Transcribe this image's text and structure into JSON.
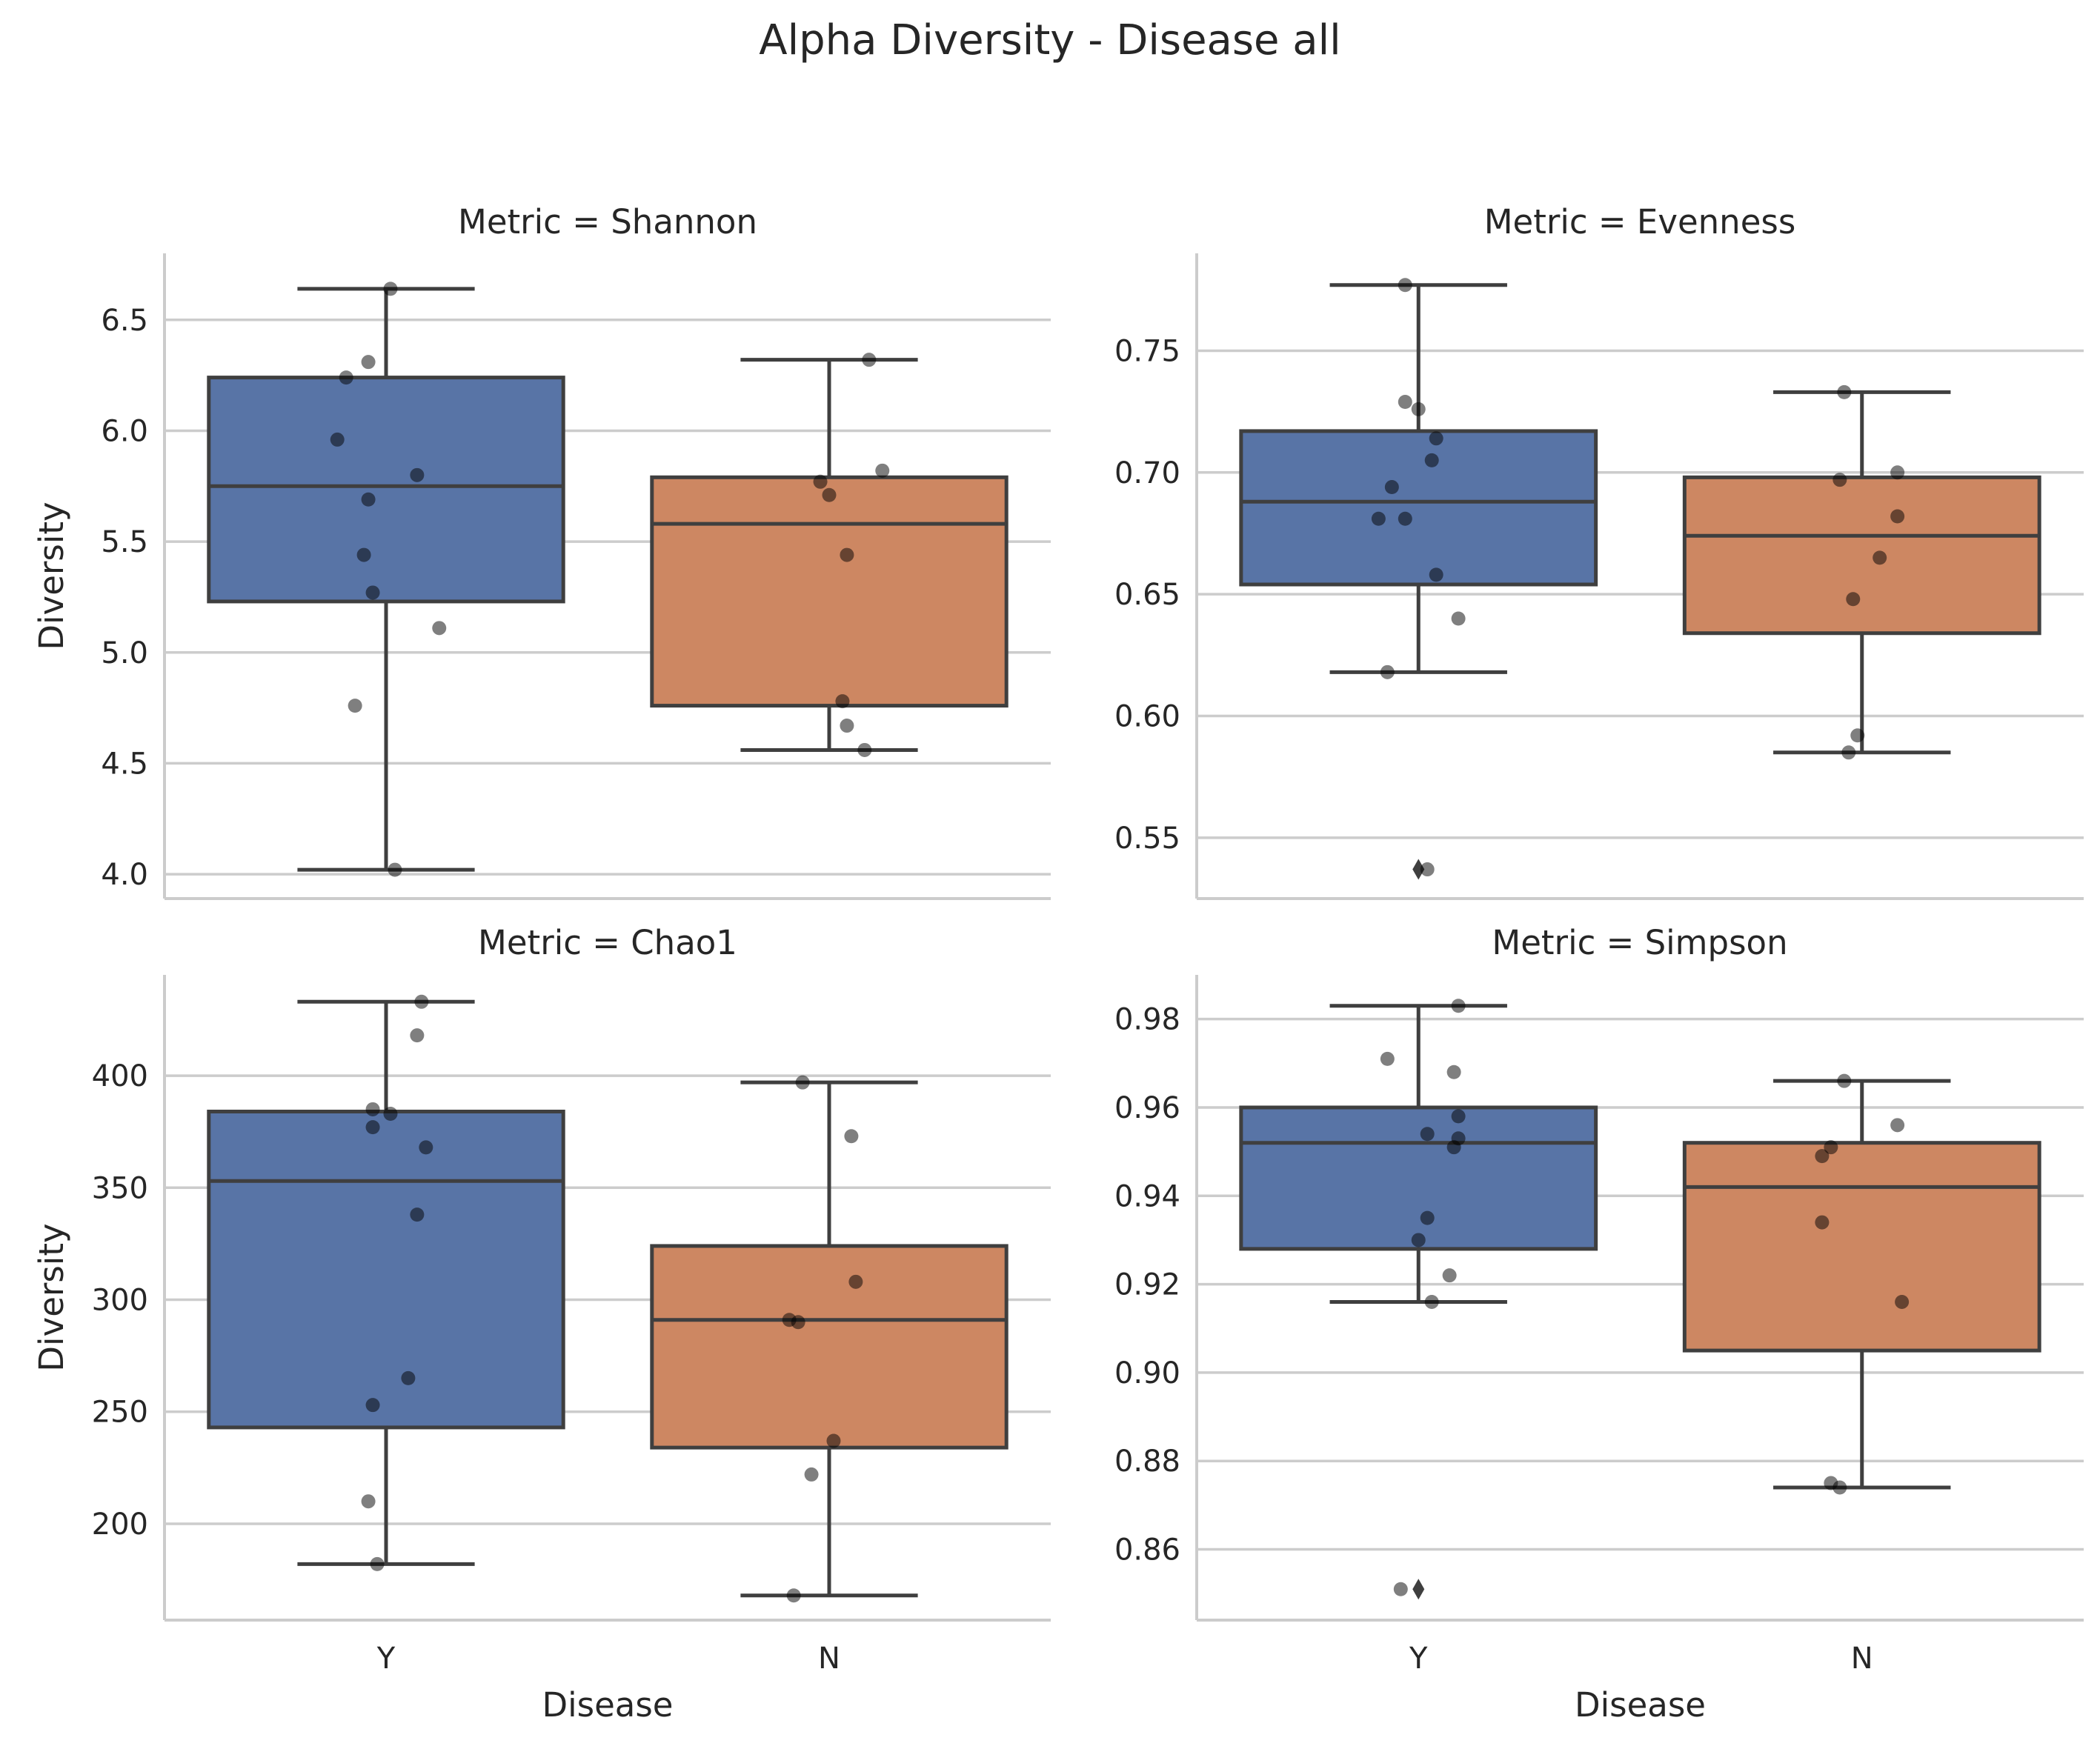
{
  "figure": {
    "title": "Alpha Diversity - Disease all"
  },
  "colors": {
    "Y": "#5874a6",
    "N": "#cd8762",
    "box_line": "#3f3f3f",
    "grid": "#cccccc",
    "point": "#000000"
  },
  "chart_data": [
    {
      "type": "box",
      "title": "Metric = Shannon",
      "xlabel": "",
      "ylabel": "Diversity",
      "ylim": [
        3.89,
        6.8
      ],
      "yticks": [
        4.0,
        4.5,
        5.0,
        5.5,
        6.0,
        6.5
      ],
      "ytick_labels": [
        "4.0",
        "4.5",
        "5.0",
        "5.5",
        "6.0",
        "6.5"
      ],
      "categories": [
        "Y",
        "N"
      ],
      "boxes": [
        {
          "category": "Y",
          "whisker_low": 4.02,
          "q1": 5.23,
          "median": 5.75,
          "q3": 6.24,
          "whisker_high": 6.64,
          "outliers": []
        },
        {
          "category": "N",
          "whisker_low": 4.56,
          "q1": 4.76,
          "median": 5.58,
          "q3": 5.79,
          "whisker_high": 6.32,
          "outliers": []
        }
      ],
      "points": [
        {
          "category": "Y",
          "jitter": 0.01,
          "value": 6.64
        },
        {
          "category": "Y",
          "jitter": -0.04,
          "value": 6.31
        },
        {
          "category": "Y",
          "jitter": -0.09,
          "value": 6.24
        },
        {
          "category": "Y",
          "jitter": -0.11,
          "value": 5.96
        },
        {
          "category": "Y",
          "jitter": 0.07,
          "value": 5.8
        },
        {
          "category": "Y",
          "jitter": -0.04,
          "value": 5.69
        },
        {
          "category": "Y",
          "jitter": -0.05,
          "value": 5.44
        },
        {
          "category": "Y",
          "jitter": -0.03,
          "value": 5.27
        },
        {
          "category": "Y",
          "jitter": 0.12,
          "value": 5.11
        },
        {
          "category": "Y",
          "jitter": -0.07,
          "value": 4.76
        },
        {
          "category": "Y",
          "jitter": 0.02,
          "value": 4.02
        },
        {
          "category": "N",
          "jitter": 0.09,
          "value": 6.32
        },
        {
          "category": "N",
          "jitter": 0.12,
          "value": 5.82
        },
        {
          "category": "N",
          "jitter": -0.02,
          "value": 5.77
        },
        {
          "category": "N",
          "jitter": 0.0,
          "value": 5.71
        },
        {
          "category": "N",
          "jitter": 0.04,
          "value": 5.44
        },
        {
          "category": "N",
          "jitter": 0.03,
          "value": 4.78
        },
        {
          "category": "N",
          "jitter": 0.04,
          "value": 4.67
        },
        {
          "category": "N",
          "jitter": 0.08,
          "value": 4.56
        }
      ],
      "grid": true,
      "show_xticks": false
    },
    {
      "type": "box",
      "title": "Metric = Evenness",
      "xlabel": "",
      "ylabel": "",
      "ylim": [
        0.525,
        0.79
      ],
      "yticks": [
        0.55,
        0.6,
        0.65,
        0.7,
        0.75
      ],
      "ytick_labels": [
        "0.55",
        "0.60",
        "0.65",
        "0.70",
        "0.75"
      ],
      "categories": [
        "Y",
        "N"
      ],
      "boxes": [
        {
          "category": "Y",
          "whisker_low": 0.618,
          "q1": 0.654,
          "median": 0.688,
          "q3": 0.717,
          "whisker_high": 0.777,
          "outliers": [
            0.537
          ]
        },
        {
          "category": "N",
          "whisker_low": 0.585,
          "q1": 0.634,
          "median": 0.674,
          "q3": 0.698,
          "whisker_high": 0.733,
          "outliers": []
        }
      ],
      "points": [
        {
          "category": "Y",
          "jitter": -0.03,
          "value": 0.777
        },
        {
          "category": "Y",
          "jitter": -0.03,
          "value": 0.729
        },
        {
          "category": "Y",
          "jitter": 0.0,
          "value": 0.726
        },
        {
          "category": "Y",
          "jitter": 0.04,
          "value": 0.714
        },
        {
          "category": "Y",
          "jitter": 0.03,
          "value": 0.705
        },
        {
          "category": "Y",
          "jitter": -0.06,
          "value": 0.694
        },
        {
          "category": "Y",
          "jitter": -0.09,
          "value": 0.681
        },
        {
          "category": "Y",
          "jitter": -0.03,
          "value": 0.681
        },
        {
          "category": "Y",
          "jitter": 0.04,
          "value": 0.658
        },
        {
          "category": "Y",
          "jitter": 0.09,
          "value": 0.64
        },
        {
          "category": "Y",
          "jitter": -0.07,
          "value": 0.618
        },
        {
          "category": "Y",
          "jitter": 0.02,
          "value": 0.537
        },
        {
          "category": "N",
          "jitter": -0.04,
          "value": 0.733
        },
        {
          "category": "N",
          "jitter": 0.08,
          "value": 0.7
        },
        {
          "category": "N",
          "jitter": -0.05,
          "value": 0.697
        },
        {
          "category": "N",
          "jitter": 0.08,
          "value": 0.682
        },
        {
          "category": "N",
          "jitter": 0.04,
          "value": 0.665
        },
        {
          "category": "N",
          "jitter": -0.02,
          "value": 0.648
        },
        {
          "category": "N",
          "jitter": -0.01,
          "value": 0.592
        },
        {
          "category": "N",
          "jitter": -0.03,
          "value": 0.585
        }
      ],
      "grid": true,
      "show_xticks": false
    },
    {
      "type": "box",
      "title": "Metric = Chao1",
      "xlabel": "Disease",
      "ylabel": "Diversity",
      "ylim": [
        157,
        445
      ],
      "yticks": [
        200,
        250,
        300,
        350,
        400
      ],
      "ytick_labels": [
        "200",
        "250",
        "300",
        "350",
        "400"
      ],
      "categories": [
        "Y",
        "N"
      ],
      "boxes": [
        {
          "category": "Y",
          "whisker_low": 182,
          "q1": 243,
          "median": 353,
          "q3": 384,
          "whisker_high": 433,
          "outliers": []
        },
        {
          "category": "N",
          "whisker_low": 168,
          "q1": 234,
          "median": 291,
          "q3": 324,
          "whisker_high": 397,
          "outliers": []
        }
      ],
      "points": [
        {
          "category": "Y",
          "jitter": 0.08,
          "value": 433
        },
        {
          "category": "Y",
          "jitter": 0.07,
          "value": 418
        },
        {
          "category": "Y",
          "jitter": -0.03,
          "value": 385
        },
        {
          "category": "Y",
          "jitter": 0.01,
          "value": 383
        },
        {
          "category": "Y",
          "jitter": -0.03,
          "value": 377
        },
        {
          "category": "Y",
          "jitter": 0.09,
          "value": 368
        },
        {
          "category": "Y",
          "jitter": 0.07,
          "value": 338
        },
        {
          "category": "Y",
          "jitter": 0.05,
          "value": 265
        },
        {
          "category": "Y",
          "jitter": -0.03,
          "value": 253
        },
        {
          "category": "Y",
          "jitter": -0.04,
          "value": 210
        },
        {
          "category": "Y",
          "jitter": -0.02,
          "value": 182
        },
        {
          "category": "N",
          "jitter": -0.06,
          "value": 397
        },
        {
          "category": "N",
          "jitter": 0.05,
          "value": 373
        },
        {
          "category": "N",
          "jitter": 0.06,
          "value": 308
        },
        {
          "category": "N",
          "jitter": -0.09,
          "value": 291
        },
        {
          "category": "N",
          "jitter": -0.07,
          "value": 290
        },
        {
          "category": "N",
          "jitter": 0.01,
          "value": 237
        },
        {
          "category": "N",
          "jitter": -0.04,
          "value": 222
        },
        {
          "category": "N",
          "jitter": -0.08,
          "value": 168
        }
      ],
      "grid": true,
      "show_xticks": true
    },
    {
      "type": "box",
      "title": "Metric = Simpson",
      "xlabel": "Disease",
      "ylabel": "",
      "ylim": [
        0.844,
        0.99
      ],
      "yticks": [
        0.86,
        0.88,
        0.9,
        0.92,
        0.94,
        0.96,
        0.98
      ],
      "ytick_labels": [
        "0.86",
        "0.88",
        "0.90",
        "0.92",
        "0.94",
        "0.96",
        "0.98"
      ],
      "categories": [
        "Y",
        "N"
      ],
      "boxes": [
        {
          "category": "Y",
          "whisker_low": 0.916,
          "q1": 0.928,
          "median": 0.952,
          "q3": 0.96,
          "whisker_high": 0.983,
          "outliers": [
            0.851
          ]
        },
        {
          "category": "N",
          "whisker_low": 0.874,
          "q1": 0.905,
          "median": 0.942,
          "q3": 0.952,
          "whisker_high": 0.966,
          "outliers": []
        }
      ],
      "points": [
        {
          "category": "Y",
          "jitter": 0.09,
          "value": 0.983
        },
        {
          "category": "Y",
          "jitter": -0.07,
          "value": 0.971
        },
        {
          "category": "Y",
          "jitter": 0.08,
          "value": 0.968
        },
        {
          "category": "Y",
          "jitter": 0.09,
          "value": 0.958
        },
        {
          "category": "Y",
          "jitter": 0.02,
          "value": 0.954
        },
        {
          "category": "Y",
          "jitter": 0.09,
          "value": 0.953
        },
        {
          "category": "Y",
          "jitter": 0.08,
          "value": 0.951
        },
        {
          "category": "Y",
          "jitter": 0.02,
          "value": 0.935
        },
        {
          "category": "Y",
          "jitter": 0.0,
          "value": 0.93
        },
        {
          "category": "Y",
          "jitter": 0.07,
          "value": 0.922
        },
        {
          "category": "Y",
          "jitter": 0.03,
          "value": 0.916
        },
        {
          "category": "Y",
          "jitter": -0.04,
          "value": 0.851
        },
        {
          "category": "N",
          "jitter": -0.04,
          "value": 0.966
        },
        {
          "category": "N",
          "jitter": 0.08,
          "value": 0.956
        },
        {
          "category": "N",
          "jitter": -0.07,
          "value": 0.951
        },
        {
          "category": "N",
          "jitter": -0.09,
          "value": 0.949
        },
        {
          "category": "N",
          "jitter": -0.09,
          "value": 0.934
        },
        {
          "category": "N",
          "jitter": 0.09,
          "value": 0.916
        },
        {
          "category": "N",
          "jitter": -0.07,
          "value": 0.875
        },
        {
          "category": "N",
          "jitter": -0.05,
          "value": 0.874
        }
      ],
      "grid": true,
      "show_xticks": true
    }
  ]
}
